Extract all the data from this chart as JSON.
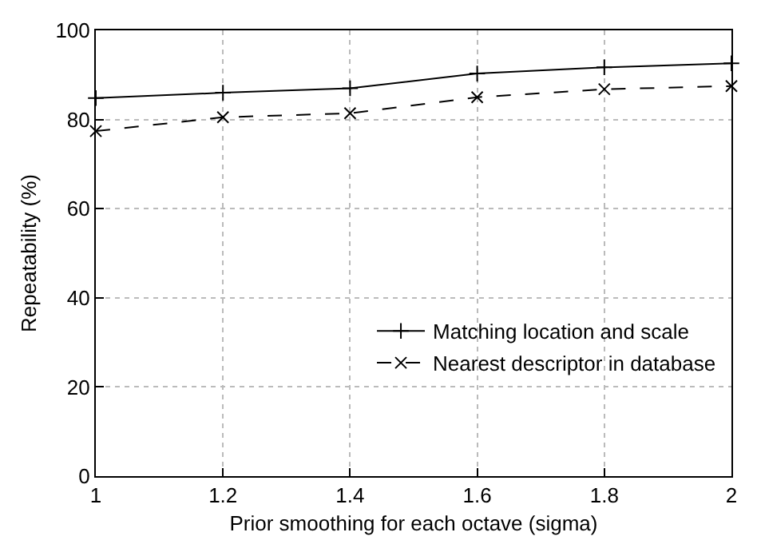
{
  "chart_data": {
    "type": "line",
    "xlabel": "Prior smoothing for each octave (sigma)",
    "ylabel": "Repeatability (%)",
    "x": [
      1,
      1.2,
      1.4,
      1.6,
      1.8,
      2
    ],
    "series": [
      {
        "name": "Matching location and scale",
        "color": "#000000",
        "values": [
          84.8,
          86,
          87,
          90.3,
          91.7,
          92.6
        ],
        "marker": "cross",
        "line_style": "solid"
      },
      {
        "name": "Nearest descriptor in database",
        "color": "#000000",
        "values": [
          77.4,
          80.5,
          81.4,
          85.0,
          86.8,
          87.5
        ],
        "marker": "x",
        "line_style": "dashed"
      }
    ],
    "xlim": [
      1,
      2
    ],
    "xticks": [
      1,
      1.2,
      1.4,
      1.6,
      1.8,
      2
    ],
    "ylim": [
      0,
      100
    ],
    "yticks": [
      0,
      20,
      40,
      60,
      80,
      100
    ],
    "grid": true,
    "legend": "bottom right"
  }
}
